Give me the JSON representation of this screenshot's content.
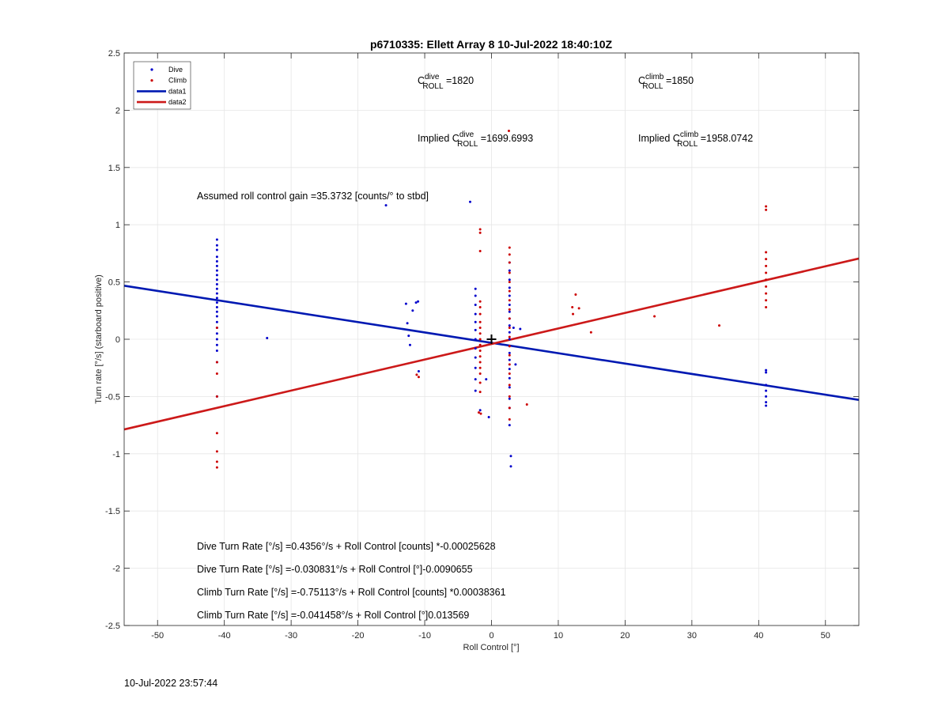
{
  "chart_data": {
    "type": "scatter",
    "title": "p6710335: Ellett Array 8 10-Jul-2022 18:40:10Z",
    "xlabel": "Roll Control [°]",
    "ylabel": "Turn rate [°/s] (starboard positive)",
    "xlim": [
      -55,
      55
    ],
    "ylim": [
      -2.5,
      2.5
    ],
    "xticks": [
      -50,
      -40,
      -30,
      -20,
      -10,
      0,
      10,
      20,
      30,
      40,
      50
    ],
    "yticks": [
      -2.5,
      -2,
      -1.5,
      -1,
      -0.5,
      0,
      0.5,
      1,
      1.5,
      2,
      2.5
    ],
    "grid": true,
    "legend": {
      "placement": "top-left",
      "entries": [
        {
          "label": "Dive",
          "kind": "dot",
          "color": "#0000cc"
        },
        {
          "label": "Climb",
          "kind": "dot",
          "color": "#cc0000"
        },
        {
          "label": "data1",
          "kind": "line",
          "color": "#0019b2"
        },
        {
          "label": "data2",
          "kind": "line",
          "color": "#cc1919"
        }
      ]
    },
    "series": [
      {
        "name": "Dive",
        "color": "#0000cc",
        "points": [
          [
            -41.1,
            0.87
          ],
          [
            -41.1,
            0.82
          ],
          [
            -41.1,
            0.78
          ],
          [
            -41.1,
            0.72
          ],
          [
            -41.1,
            0.68
          ],
          [
            -41.1,
            0.64
          ],
          [
            -41.1,
            0.6
          ],
          [
            -41.1,
            0.56
          ],
          [
            -41.1,
            0.52
          ],
          [
            -41.1,
            0.48
          ],
          [
            -41.1,
            0.44
          ],
          [
            -41.1,
            0.4
          ],
          [
            -41.1,
            0.36
          ],
          [
            -41.1,
            0.32
          ],
          [
            -41.1,
            0.28
          ],
          [
            -41.1,
            0.24
          ],
          [
            -41.1,
            0.2
          ],
          [
            -41.1,
            0.15
          ],
          [
            -41.1,
            0.1
          ],
          [
            -41.1,
            0.05
          ],
          [
            -41.1,
            0.0
          ],
          [
            -41.1,
            -0.05
          ],
          [
            -41.1,
            -0.1
          ],
          [
            -41.1,
            -0.2
          ],
          [
            -41.1,
            -0.5
          ],
          [
            -33.6,
            0.01
          ],
          [
            -15.8,
            1.17
          ],
          [
            -12.8,
            0.31
          ],
          [
            -12.6,
            0.14
          ],
          [
            -12.4,
            0.03
          ],
          [
            -12.2,
            -0.05
          ],
          [
            -11.8,
            0.25
          ],
          [
            -11.3,
            0.32
          ],
          [
            -11.0,
            0.33
          ],
          [
            -10.9,
            -0.28
          ],
          [
            -3.2,
            1.2
          ],
          [
            -2.4,
            0.44
          ],
          [
            -2.4,
            0.38
          ],
          [
            -2.4,
            0.3
          ],
          [
            -2.4,
            0.22
          ],
          [
            -2.4,
            0.15
          ],
          [
            -2.4,
            0.08
          ],
          [
            -2.4,
            0.0
          ],
          [
            -2.4,
            -0.08
          ],
          [
            -2.4,
            -0.16
          ],
          [
            -2.4,
            -0.25
          ],
          [
            -2.4,
            -0.35
          ],
          [
            -2.4,
            -0.45
          ],
          [
            -1.7,
            -0.62
          ],
          [
            -0.4,
            -0.68
          ],
          [
            -0.8,
            -0.35
          ],
          [
            2.7,
            0.67
          ],
          [
            2.7,
            0.6
          ],
          [
            2.7,
            0.52
          ],
          [
            2.7,
            0.45
          ],
          [
            2.7,
            0.38
          ],
          [
            2.7,
            0.3
          ],
          [
            2.7,
            0.24
          ],
          [
            2.7,
            0.18
          ],
          [
            2.7,
            0.12
          ],
          [
            2.7,
            0.06
          ],
          [
            2.7,
            0.0
          ],
          [
            2.7,
            -0.06
          ],
          [
            2.7,
            -0.12
          ],
          [
            2.7,
            -0.18
          ],
          [
            2.7,
            -0.26
          ],
          [
            2.7,
            -0.34
          ],
          [
            2.7,
            -0.42
          ],
          [
            2.7,
            -0.52
          ],
          [
            2.7,
            -0.6
          ],
          [
            2.7,
            -0.75
          ],
          [
            2.9,
            -1.02
          ],
          [
            2.9,
            -1.11
          ],
          [
            3.3,
            0.1
          ],
          [
            4.3,
            0.09
          ],
          [
            3.6,
            -0.22
          ],
          [
            41.1,
            -0.27
          ],
          [
            41.1,
            -0.29
          ],
          [
            41.1,
            -0.4
          ],
          [
            41.1,
            -0.45
          ],
          [
            41.1,
            -0.5
          ],
          [
            41.1,
            -0.55
          ],
          [
            41.1,
            -0.58
          ]
        ]
      },
      {
        "name": "Climb",
        "color": "#cc0000",
        "points": [
          [
            -41.1,
            0.1
          ],
          [
            -41.1,
            -0.2
          ],
          [
            -41.1,
            -0.3
          ],
          [
            -41.1,
            -0.5
          ],
          [
            -41.1,
            -0.82
          ],
          [
            -41.1,
            -0.98
          ],
          [
            -41.1,
            -1.07
          ],
          [
            -41.1,
            -1.12
          ],
          [
            -11.2,
            -0.31
          ],
          [
            -10.9,
            -0.33
          ],
          [
            -1.7,
            0.96
          ],
          [
            -1.7,
            0.93
          ],
          [
            -1.7,
            0.77
          ],
          [
            -1.7,
            0.33
          ],
          [
            -1.7,
            0.28
          ],
          [
            -1.7,
            0.22
          ],
          [
            -1.7,
            0.15
          ],
          [
            -1.7,
            0.1
          ],
          [
            -1.7,
            0.05
          ],
          [
            -1.7,
            0.0
          ],
          [
            -1.7,
            -0.05
          ],
          [
            -1.7,
            -0.1
          ],
          [
            -1.7,
            -0.15
          ],
          [
            -1.7,
            -0.2
          ],
          [
            -1.7,
            -0.25
          ],
          [
            -1.7,
            -0.3
          ],
          [
            -1.7,
            -0.38
          ],
          [
            -1.7,
            -0.46
          ],
          [
            -1.9,
            -0.64
          ],
          [
            -1.6,
            -0.65
          ],
          [
            2.6,
            1.82
          ],
          [
            2.7,
            0.8
          ],
          [
            2.7,
            0.74
          ],
          [
            2.7,
            0.67
          ],
          [
            2.7,
            0.58
          ],
          [
            2.7,
            0.5
          ],
          [
            2.7,
            0.42
          ],
          [
            2.7,
            0.34
          ],
          [
            2.7,
            0.26
          ],
          [
            2.7,
            0.18
          ],
          [
            2.7,
            0.1
          ],
          [
            2.7,
            0.02
          ],
          [
            2.7,
            -0.06
          ],
          [
            2.7,
            -0.14
          ],
          [
            2.7,
            -0.22
          ],
          [
            2.7,
            -0.3
          ],
          [
            2.7,
            -0.4
          ],
          [
            2.7,
            -0.5
          ],
          [
            2.7,
            -0.6
          ],
          [
            2.7,
            -0.7
          ],
          [
            5.3,
            -0.57
          ],
          [
            12.1,
            0.28
          ],
          [
            12.2,
            0.22
          ],
          [
            12.6,
            0.39
          ],
          [
            13.1,
            0.27
          ],
          [
            14.9,
            0.06
          ],
          [
            24.4,
            0.2
          ],
          [
            34.1,
            0.12
          ],
          [
            41.1,
            1.16
          ],
          [
            41.1,
            1.13
          ],
          [
            41.1,
            0.76
          ],
          [
            41.1,
            0.7
          ],
          [
            41.1,
            0.64
          ],
          [
            41.1,
            0.58
          ],
          [
            41.1,
            0.52
          ],
          [
            41.1,
            0.46
          ],
          [
            41.1,
            0.4
          ],
          [
            41.1,
            0.34
          ],
          [
            41.1,
            0.28
          ]
        ]
      },
      {
        "name": "data1",
        "kind": "line",
        "color": "#0019b2",
        "points": [
          [
            -55,
            0.4674
          ],
          [
            55,
            -0.5298
          ]
        ]
      },
      {
        "name": "data2",
        "kind": "line",
        "color": "#cc1919",
        "points": [
          [
            -55,
            -0.7877
          ],
          [
            55,
            0.7049
          ]
        ]
      }
    ],
    "marker": {
      "x": 0,
      "y": 0,
      "symbol": "+"
    }
  },
  "annotations": {
    "c_roll_dive": {
      "base": "C",
      "sup": "dive",
      "sub": "ROLL",
      "tail": " =1820"
    },
    "c_roll_climb": {
      "base": "C",
      "sup": "climb",
      "sub": "ROLL",
      "tail": " =1850"
    },
    "implied_dive": {
      "prefix": "Implied ",
      "base": "C",
      "sup": "dive",
      "sub": "ROLL",
      "tail": " =1699.6993"
    },
    "implied_climb": {
      "prefix": "Implied ",
      "base": "C",
      "sup": "climb",
      "sub": "ROLL",
      "tail": " =1958.0742"
    },
    "gain": "Assumed roll control gain =35.3732 [counts/° to stbd]",
    "eq1": "Dive Turn Rate [°/s] =0.4356°/s + Roll Control [counts] *-0.00025628",
    "eq2": "Dive Turn Rate [°/s] =-0.030831°/s + Roll Control [°]-0.0090655",
    "eq3": "Climb Turn Rate [°/s] =-0.75113°/s + Roll Control [counts] *0.00038361",
    "eq4": "Climb Turn Rate [°/s] =-0.041458°/s + Roll Control [°]0.013569"
  },
  "footer": {
    "timestamp": "10-Jul-2022 23:57:44"
  }
}
